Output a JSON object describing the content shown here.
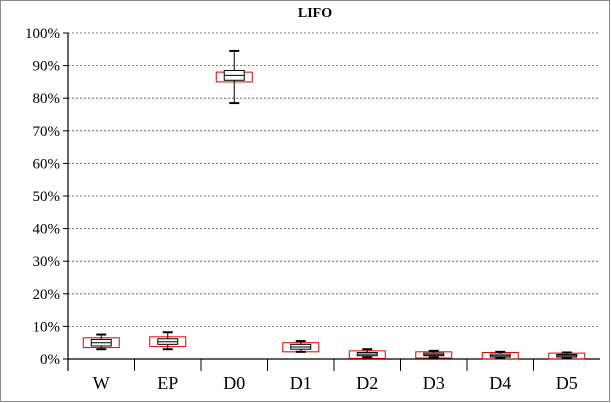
{
  "chart_data": {
    "type": "box",
    "title": "LIFO",
    "xlabel": "",
    "ylabel": "",
    "ylim": [
      0,
      1
    ],
    "y_ticks": [
      "0%",
      "10%",
      "20%",
      "30%",
      "40%",
      "50%",
      "60%",
      "70%",
      "80%",
      "90%",
      "100%"
    ],
    "y_tick_values": [
      0,
      0.1,
      0.2,
      0.3,
      0.4,
      0.5,
      0.6,
      0.7,
      0.8,
      0.9,
      1.0
    ],
    "grid": "horizontal dashed",
    "categories": [
      "W",
      "EP",
      "D0",
      "D1",
      "D2",
      "D3",
      "D4",
      "D5"
    ],
    "boxes": [
      {
        "min": 0.03,
        "q1": 0.04,
        "median": 0.05,
        "q3": 0.06,
        "max": 0.075,
        "outer_low": 0.035,
        "outer_high": 0.065
      },
      {
        "min": 0.03,
        "q1": 0.045,
        "median": 0.053,
        "q3": 0.062,
        "max": 0.082,
        "outer_low": 0.038,
        "outer_high": 0.068
      },
      {
        "min": 0.785,
        "q1": 0.855,
        "median": 0.87,
        "q3": 0.885,
        "max": 0.945,
        "outer_low": 0.85,
        "outer_high": 0.88
      },
      {
        "min": 0.022,
        "q1": 0.03,
        "median": 0.037,
        "q3": 0.045,
        "max": 0.055,
        "outer_low": 0.022,
        "outer_high": 0.05
      },
      {
        "min": 0.005,
        "q1": 0.01,
        "median": 0.015,
        "q3": 0.02,
        "max": 0.03,
        "outer_low": 0.002,
        "outer_high": 0.025
      },
      {
        "min": 0.005,
        "q1": 0.01,
        "median": 0.013,
        "q3": 0.018,
        "max": 0.025,
        "outer_low": 0.003,
        "outer_high": 0.022
      },
      {
        "min": 0.003,
        "q1": 0.006,
        "median": 0.01,
        "q3": 0.015,
        "max": 0.022,
        "outer_low": 0.0,
        "outer_high": 0.02
      },
      {
        "min": 0.003,
        "q1": 0.006,
        "median": 0.01,
        "q3": 0.014,
        "max": 0.02,
        "outer_low": 0.0,
        "outer_high": 0.018
      }
    ],
    "colors": {
      "box": "#000000",
      "outer_box": "#e00000",
      "grid": "#555555",
      "axis": "#000000"
    }
  }
}
